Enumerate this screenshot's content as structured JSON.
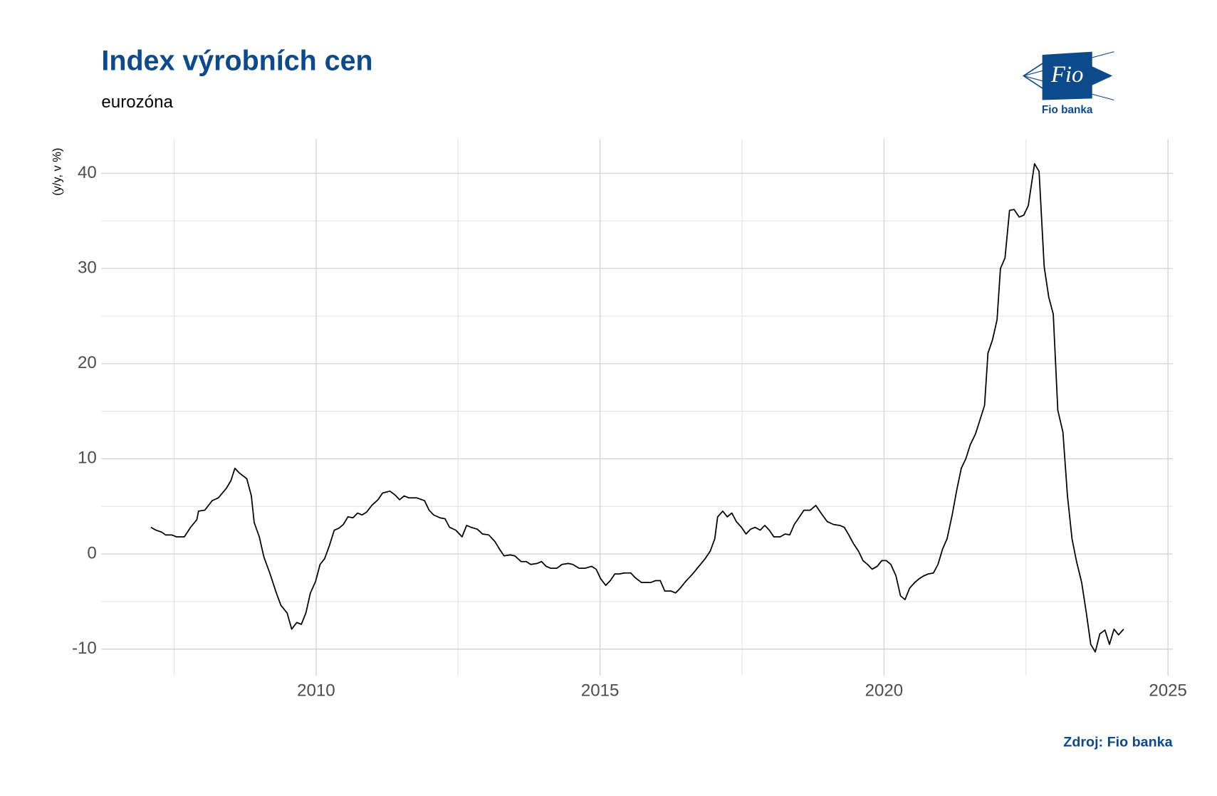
{
  "chart_data": {
    "type": "line",
    "title": "Index výrobních cen",
    "subtitle": "eurozóna",
    "y_label": "(y/y, v %)",
    "source": "Zdroj: Fio banka",
    "logo": {
      "mark": "Fio",
      "name": "Fio banka"
    },
    "grid": true,
    "xlim": [
      2006.22,
      2025.08
    ],
    "ylim": [
      -12.79,
      43.6
    ],
    "xticks": [
      2010,
      2015,
      2020,
      2025
    ],
    "yticks": [
      -10,
      0,
      10,
      20,
      30,
      40
    ],
    "minor_xticks": [
      2007.5,
      2012.5,
      2017.5,
      2022.5
    ],
    "minor_yticks": [
      -5,
      5,
      15,
      25,
      35
    ],
    "x": [
      2007.09,
      2007.18,
      2007.28,
      2007.35,
      2007.46,
      2007.54,
      2007.68,
      2007.79,
      2007.9,
      2007.93,
      2008.04,
      2008.17,
      2008.28,
      2008.42,
      2008.5,
      2008.57,
      2008.65,
      2008.78,
      2008.86,
      2008.91,
      2009.0,
      2009.08,
      2009.19,
      2009.3,
      2009.38,
      2009.49,
      2009.57,
      2009.66,
      2009.74,
      2009.82,
      2009.9,
      2009.99,
      2010.07,
      2010.15,
      2010.23,
      2010.32,
      2010.4,
      2010.48,
      2010.56,
      2010.65,
      2010.73,
      2010.81,
      2010.89,
      2010.98,
      2011.09,
      2011.17,
      2011.3,
      2011.39,
      2011.47,
      2011.55,
      2011.63,
      2011.77,
      2011.91,
      2011.99,
      2012.07,
      2012.18,
      2012.27,
      2012.35,
      2012.46,
      2012.57,
      2012.65,
      2012.73,
      2012.84,
      2012.93,
      2013.04,
      2013.15,
      2013.23,
      2013.31,
      2013.42,
      2013.5,
      2013.61,
      2013.7,
      2013.78,
      2013.89,
      2013.97,
      2014.05,
      2014.13,
      2014.24,
      2014.33,
      2014.44,
      2014.52,
      2014.63,
      2014.74,
      2014.85,
      2014.93,
      2015.01,
      2015.1,
      2015.18,
      2015.26,
      2015.34,
      2015.43,
      2015.54,
      2015.62,
      2015.73,
      2015.89,
      2015.98,
      2016.06,
      2016.14,
      2016.25,
      2016.33,
      2016.41,
      2016.52,
      2016.63,
      2016.74,
      2016.85,
      2016.94,
      2017.02,
      2017.07,
      2017.16,
      2017.24,
      2017.32,
      2017.4,
      2017.49,
      2017.57,
      2017.65,
      2017.73,
      2017.82,
      2017.9,
      2017.98,
      2018.06,
      2018.17,
      2018.26,
      2018.34,
      2018.42,
      2018.5,
      2018.59,
      2018.7,
      2018.8,
      2018.89,
      2019.0,
      2019.11,
      2019.22,
      2019.3,
      2019.38,
      2019.46,
      2019.55,
      2019.63,
      2019.71,
      2019.79,
      2019.88,
      2019.96,
      2020.04,
      2020.12,
      2020.21,
      2020.29,
      2020.37,
      2020.45,
      2020.54,
      2020.62,
      2020.7,
      2020.78,
      2020.87,
      2020.95,
      2021.03,
      2021.11,
      2021.2,
      2021.28,
      2021.36,
      2021.44,
      2021.52,
      2021.61,
      2021.69,
      2021.77,
      2021.83,
      2021.91,
      2021.99,
      2022.05,
      2022.13,
      2022.21,
      2022.29,
      2022.38,
      2022.46,
      2022.54,
      2022.65,
      2022.73,
      2022.82,
      2022.9,
      2022.98,
      2023.06,
      2023.15,
      2023.23,
      2023.31,
      2023.39,
      2023.48,
      2023.56,
      2023.64,
      2023.72,
      2023.8,
      2023.89,
      2023.97,
      2024.05,
      2024.13,
      2024.22
    ],
    "series": [
      {
        "color": "#000000",
        "values": [
          2.8,
          2.5,
          2.3,
          2.0,
          2.0,
          1.8,
          1.8,
          2.8,
          3.6,
          4.5,
          4.6,
          5.6,
          5.9,
          6.9,
          7.7,
          9.0,
          8.5,
          7.9,
          6.1,
          3.3,
          1.8,
          -0.3,
          -2.1,
          -4.1,
          -5.4,
          -6.2,
          -7.9,
          -7.2,
          -7.4,
          -6.2,
          -4.1,
          -2.9,
          -1.1,
          -0.5,
          0.8,
          2.5,
          2.7,
          3.1,
          3.9,
          3.8,
          4.3,
          4.1,
          4.4,
          5.1,
          5.7,
          6.4,
          6.6,
          6.2,
          5.7,
          6.1,
          5.9,
          5.9,
          5.6,
          4.6,
          4.1,
          3.8,
          3.7,
          2.8,
          2.5,
          1.8,
          3.0,
          2.8,
          2.6,
          2.1,
          2.0,
          1.3,
          0.5,
          -0.2,
          -0.1,
          -0.2,
          -0.8,
          -0.8,
          -1.1,
          -1.0,
          -0.8,
          -1.3,
          -1.5,
          -1.5,
          -1.1,
          -1.0,
          -1.1,
          -1.5,
          -1.5,
          -1.3,
          -1.6,
          -2.6,
          -3.3,
          -2.8,
          -2.1,
          -2.1,
          -2.0,
          -2.0,
          -2.5,
          -3.0,
          -3.0,
          -2.8,
          -2.8,
          -3.9,
          -3.9,
          -4.1,
          -3.6,
          -2.8,
          -2.1,
          -1.3,
          -0.5,
          0.3,
          1.6,
          3.9,
          4.5,
          3.9,
          4.3,
          3.4,
          2.8,
          2.1,
          2.6,
          2.8,
          2.5,
          3.0,
          2.5,
          1.8,
          1.8,
          2.1,
          2.0,
          3.1,
          3.8,
          4.6,
          4.6,
          5.1,
          4.3,
          3.4,
          3.1,
          3.0,
          2.8,
          2.0,
          1.1,
          0.3,
          -0.7,
          -1.1,
          -1.6,
          -1.3,
          -0.7,
          -0.7,
          -1.1,
          -2.3,
          -4.4,
          -4.8,
          -3.6,
          -3.0,
          -2.6,
          -2.3,
          -2.1,
          -2.0,
          -1.1,
          0.5,
          1.6,
          4.1,
          6.7,
          9.0,
          10.0,
          11.5,
          12.6,
          14.1,
          15.6,
          21.1,
          22.5,
          24.6,
          30.0,
          31.1,
          36.1,
          36.2,
          35.4,
          35.6,
          36.6,
          41.0,
          40.2,
          30.2,
          27.0,
          25.2,
          15.1,
          12.8,
          6.1,
          1.6,
          -0.8,
          -3.0,
          -6.1,
          -9.5,
          -10.3,
          -8.4,
          -8.0,
          -9.5,
          -7.9,
          -8.5,
          -7.9
        ]
      }
    ]
  }
}
